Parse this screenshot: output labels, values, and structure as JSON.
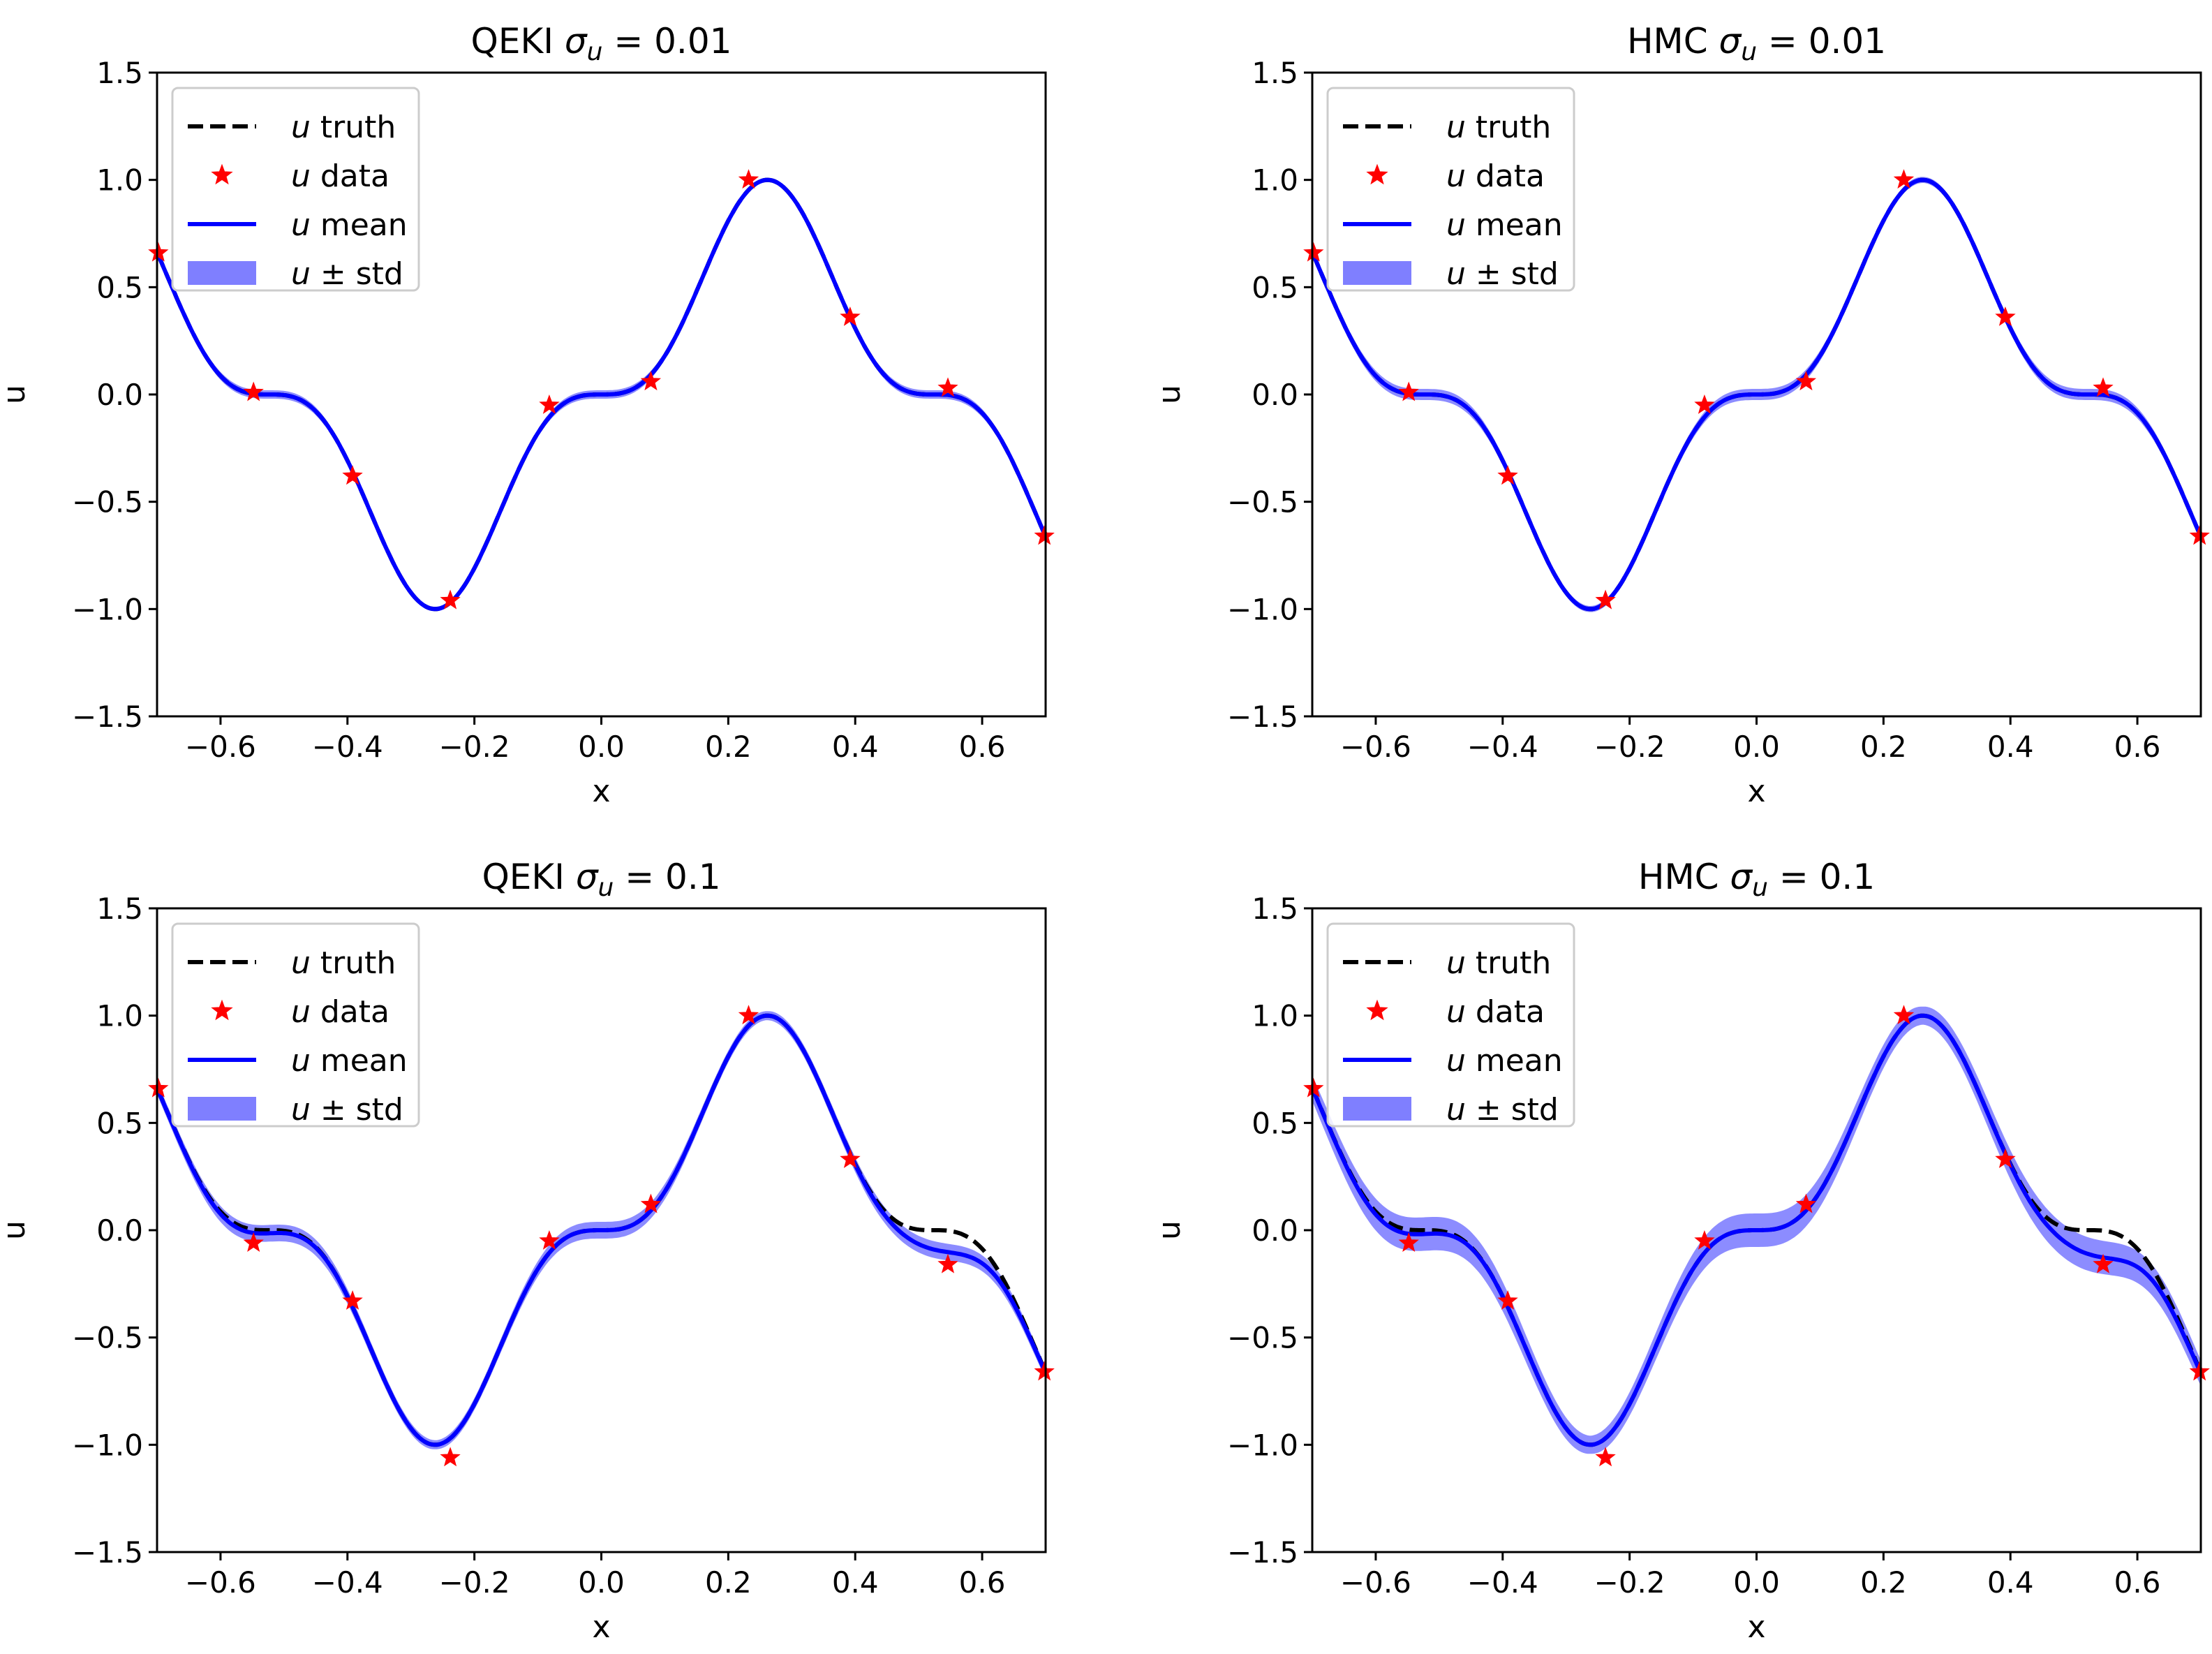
{
  "chart_data": [
    {
      "type": "line",
      "title_prefix": "QEKI ",
      "title_sigma": "σ",
      "title_sub": "u",
      "title_suffix": " = 0.01",
      "xlabel": "x",
      "ylabel": "u",
      "xlim": [
        -0.7,
        0.7
      ],
      "ylim": [
        -1.5,
        1.5
      ],
      "xticks": [
        -0.6,
        -0.4,
        -0.2,
        0.0,
        0.2,
        0.4,
        0.6
      ],
      "xtick_labels": [
        "−0.6",
        "−0.4",
        "−0.2",
        "0.0",
        "0.2",
        "0.4",
        "0.6"
      ],
      "yticks": [
        -1.5,
        -1.0,
        -0.5,
        0.0,
        0.5,
        1.0,
        1.5
      ],
      "ytick_labels": [
        "−1.5",
        "−1.0",
        "−0.5",
        "0.0",
        "0.5",
        "1.0",
        "1.5"
      ],
      "legend": [
        {
          "var": "u",
          "text": " truth"
        },
        {
          "var": "u",
          "text": " data"
        },
        {
          "var": "u",
          "text": " mean"
        },
        {
          "var": "u",
          "text": " ± std"
        }
      ],
      "legend_position": "upper-left",
      "std_scale": 0.015,
      "mean_shift": 0.0,
      "data_points": {
        "x": [
          -0.698,
          -0.548,
          -0.392,
          -0.238,
          -0.082,
          0.078,
          0.232,
          0.392,
          0.546,
          0.698
        ],
        "y": [
          0.66,
          0.01,
          -0.38,
          -0.96,
          -0.05,
          0.06,
          1.0,
          0.36,
          0.03,
          -0.66
        ]
      }
    },
    {
      "type": "line",
      "title_prefix": "HMC ",
      "title_sigma": "σ",
      "title_sub": "u",
      "title_suffix": " = 0.01",
      "xlabel": "x",
      "ylabel": "u",
      "xlim": [
        -0.7,
        0.7
      ],
      "ylim": [
        -1.5,
        1.5
      ],
      "xticks": [
        -0.6,
        -0.4,
        -0.2,
        0.0,
        0.2,
        0.4,
        0.6
      ],
      "xtick_labels": [
        "−0.6",
        "−0.4",
        "−0.2",
        "0.0",
        "0.2",
        "0.4",
        "0.6"
      ],
      "yticks": [
        -1.5,
        -1.0,
        -0.5,
        0.0,
        0.5,
        1.0,
        1.5
      ],
      "ytick_labels": [
        "−1.5",
        "−1.0",
        "−0.5",
        "0.0",
        "0.5",
        "1.0",
        "1.5"
      ],
      "legend": [
        {
          "var": "u",
          "text": " truth"
        },
        {
          "var": "u",
          "text": " data"
        },
        {
          "var": "u",
          "text": " mean"
        },
        {
          "var": "u",
          "text": " ± std"
        }
      ],
      "legend_position": "upper-left",
      "std_scale": 0.02,
      "mean_shift": 0.0,
      "data_points": {
        "x": [
          -0.698,
          -0.548,
          -0.392,
          -0.238,
          -0.082,
          0.078,
          0.232,
          0.392,
          0.546,
          0.698
        ],
        "y": [
          0.66,
          0.01,
          -0.38,
          -0.96,
          -0.05,
          0.06,
          1.0,
          0.36,
          0.03,
          -0.66
        ]
      }
    },
    {
      "type": "line",
      "title_prefix": "QEKI ",
      "title_sigma": "σ",
      "title_sub": "u",
      "title_suffix": " = 0.1",
      "xlabel": "x",
      "ylabel": "u",
      "xlim": [
        -0.7,
        0.7
      ],
      "ylim": [
        -1.5,
        1.5
      ],
      "xticks": [
        -0.6,
        -0.4,
        -0.2,
        0.0,
        0.2,
        0.4,
        0.6
      ],
      "xtick_labels": [
        "−0.6",
        "−0.4",
        "−0.2",
        "0.0",
        "0.2",
        "0.4",
        "0.6"
      ],
      "yticks": [
        -1.5,
        -1.0,
        -0.5,
        0.0,
        0.5,
        1.0,
        1.5
      ],
      "ytick_labels": [
        "−1.5",
        "−1.0",
        "−0.5",
        "0.0",
        "0.5",
        "1.0",
        "1.5"
      ],
      "legend": [
        {
          "var": "u",
          "text": " truth"
        },
        {
          "var": "u",
          "text": " data"
        },
        {
          "var": "u",
          "text": " mean"
        },
        {
          "var": "u",
          "text": " ± std"
        }
      ],
      "legend_position": "upper-left",
      "std_scale": 0.03,
      "mean_shift": -0.04,
      "data_points": {
        "x": [
          -0.698,
          -0.548,
          -0.392,
          -0.238,
          -0.082,
          0.078,
          0.232,
          0.392,
          0.546,
          0.698
        ],
        "y": [
          0.66,
          -0.06,
          -0.33,
          -1.06,
          -0.05,
          0.12,
          1.0,
          0.33,
          -0.16,
          -0.66
        ]
      }
    },
    {
      "type": "line",
      "title_prefix": "HMC ",
      "title_sigma": "σ",
      "title_sub": "u",
      "title_suffix": " = 0.1",
      "xlabel": "x",
      "ylabel": "u",
      "xlim": [
        -0.7,
        0.7
      ],
      "ylim": [
        -1.5,
        1.5
      ],
      "xticks": [
        -0.6,
        -0.4,
        -0.2,
        0.0,
        0.2,
        0.4,
        0.6
      ],
      "xtick_labels": [
        "−0.6",
        "−0.4",
        "−0.2",
        "0.0",
        "0.2",
        "0.4",
        "0.6"
      ],
      "yticks": [
        -1.5,
        -1.0,
        -0.5,
        0.0,
        0.5,
        1.0,
        1.5
      ],
      "ytick_labels": [
        "−1.5",
        "−1.0",
        "−0.5",
        "0.0",
        "0.5",
        "1.0",
        "1.5"
      ],
      "legend": [
        {
          "var": "u",
          "text": " truth"
        },
        {
          "var": "u",
          "text": " data"
        },
        {
          "var": "u",
          "text": " mean"
        },
        {
          "var": "u",
          "text": " ± std"
        }
      ],
      "legend_position": "upper-left",
      "std_scale": 0.06,
      "mean_shift": -0.05,
      "data_points": {
        "x": [
          -0.698,
          -0.548,
          -0.392,
          -0.238,
          -0.082,
          0.078,
          0.232,
          0.392,
          0.546,
          0.698
        ],
        "y": [
          0.66,
          -0.06,
          -0.33,
          -1.06,
          -0.05,
          0.12,
          1.0,
          0.33,
          -0.16,
          -0.66
        ]
      }
    }
  ],
  "colors": {
    "truth": "#000000",
    "data": "#ff0000",
    "mean": "#0000ff",
    "band": "#7f7fff"
  }
}
